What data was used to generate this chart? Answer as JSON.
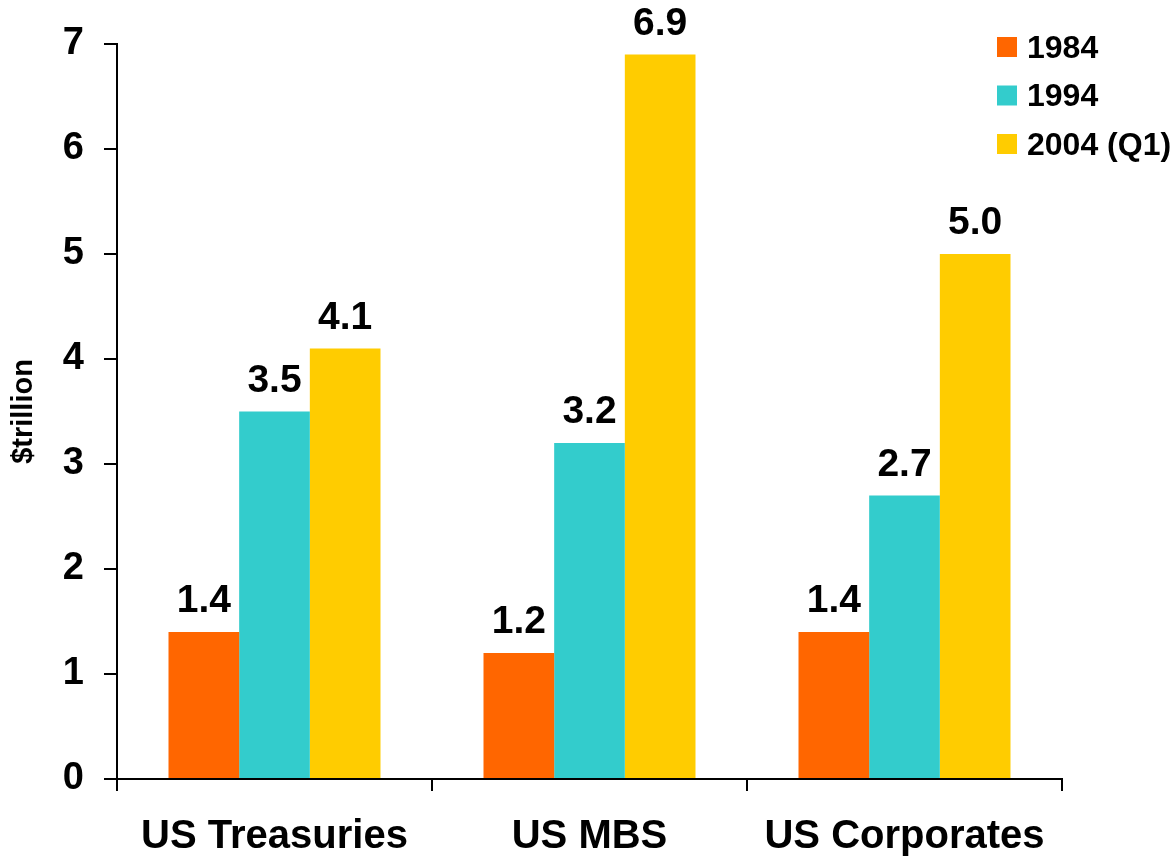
{
  "chart_data": {
    "type": "bar",
    "ylabel": "$trillion",
    "categories": [
      "US Treasuries",
      "US MBS",
      "US Corporates"
    ],
    "series": [
      {
        "name": "1984",
        "color": "#ff6600",
        "values": [
          1.4,
          1.2,
          1.4
        ],
        "value_labels": [
          "1.4",
          "1.2",
          "1.4"
        ]
      },
      {
        "name": "1994",
        "color": "#33cccc",
        "values": [
          3.5,
          3.2,
          2.7
        ],
        "value_labels": [
          "3.5",
          "3.2",
          "2.7"
        ]
      },
      {
        "name": "2004 (Q1)",
        "color": "#ffcc00",
        "values": [
          4.1,
          6.9,
          5.0
        ],
        "value_labels": [
          "4.1",
          "6.9",
          "5.0"
        ]
      }
    ],
    "ylim": [
      0,
      7
    ],
    "yticks": [
      0,
      1,
      2,
      3,
      4,
      5,
      6,
      7
    ],
    "legend": "top right"
  }
}
